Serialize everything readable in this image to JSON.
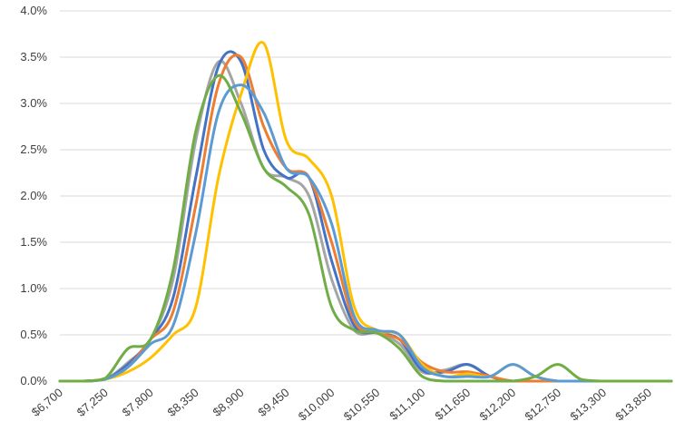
{
  "chart_data": {
    "type": "line",
    "title": "",
    "xlabel": "",
    "ylabel": "",
    "x": [
      6700,
      6975,
      7250,
      7525,
      7800,
      8075,
      8350,
      8625,
      8900,
      9175,
      9450,
      9725,
      10000,
      10275,
      10550,
      10825,
      11100,
      11375,
      11650,
      11925,
      12200,
      12475,
      12750,
      13025,
      13300,
      13575,
      13850,
      14125
    ],
    "x_tick_labels": [
      "$6,700",
      "$7,250",
      "$7,800",
      "$8,350",
      "$8,900",
      "$9,450",
      "$10,000",
      "$10,550",
      "$11,100",
      "$11,650",
      "$12,200",
      "$12,750",
      "$13,300",
      "$13,850"
    ],
    "y_tick_labels": [
      "0.0%",
      "0.5%",
      "1.0%",
      "1.5%",
      "2.0%",
      "2.5%",
      "3.0%",
      "3.5%",
      "4.0%"
    ],
    "ylim": [
      0,
      4.0
    ],
    "xlim": [
      6700,
      14125
    ],
    "grid": true,
    "series": [
      {
        "color": "#A5A5A5",
        "values": [
          0,
          0,
          0.02,
          0.2,
          0.45,
          1.1,
          2.6,
          3.45,
          3.0,
          2.3,
          2.2,
          2.0,
          1.1,
          0.55,
          0.52,
          0.4,
          0.1,
          0.12,
          0.18,
          0.05,
          0,
          0,
          0,
          0,
          0,
          0,
          0,
          0
        ]
      },
      {
        "color": "#4472C4",
        "values": [
          0,
          0,
          0.02,
          0.18,
          0.45,
          0.9,
          2.2,
          3.4,
          3.45,
          2.5,
          2.2,
          2.2,
          1.3,
          0.6,
          0.52,
          0.45,
          0.12,
          0.1,
          0.18,
          0.05,
          0,
          0,
          0,
          0,
          0,
          0,
          0,
          0
        ]
      },
      {
        "color": "#ED7D31",
        "values": [
          0,
          0,
          0.02,
          0.15,
          0.45,
          0.75,
          1.9,
          3.2,
          3.5,
          2.75,
          2.3,
          2.2,
          1.5,
          0.65,
          0.52,
          0.45,
          0.2,
          0.1,
          0.1,
          0.05,
          0,
          0,
          0,
          0,
          0,
          0,
          0,
          0
        ]
      },
      {
        "color": "#FFC000",
        "values": [
          0,
          0,
          0.02,
          0.1,
          0.25,
          0.5,
          0.8,
          2.2,
          3.1,
          3.65,
          2.6,
          2.4,
          2.0,
          0.8,
          0.55,
          0.5,
          0.18,
          0.05,
          0.08,
          0.05,
          0.18,
          0.05,
          0,
          0,
          0,
          0,
          0,
          0
        ]
      },
      {
        "color": "#5B9BD5",
        "values": [
          0,
          0,
          0.02,
          0.15,
          0.4,
          0.6,
          1.6,
          2.9,
          3.2,
          2.9,
          2.3,
          2.2,
          1.7,
          0.7,
          0.55,
          0.5,
          0.15,
          0.05,
          0.05,
          0.05,
          0.18,
          0.05,
          0,
          0,
          0,
          0,
          0,
          0
        ]
      },
      {
        "color": "#70AD47",
        "values": [
          0,
          0,
          0.03,
          0.35,
          0.45,
          1.2,
          2.7,
          3.3,
          2.9,
          2.3,
          2.1,
          1.8,
          0.8,
          0.55,
          0.52,
          0.35,
          0.05,
          0,
          0,
          0,
          0,
          0.05,
          0.18,
          0.02,
          0,
          0,
          0,
          0
        ]
      }
    ]
  }
}
